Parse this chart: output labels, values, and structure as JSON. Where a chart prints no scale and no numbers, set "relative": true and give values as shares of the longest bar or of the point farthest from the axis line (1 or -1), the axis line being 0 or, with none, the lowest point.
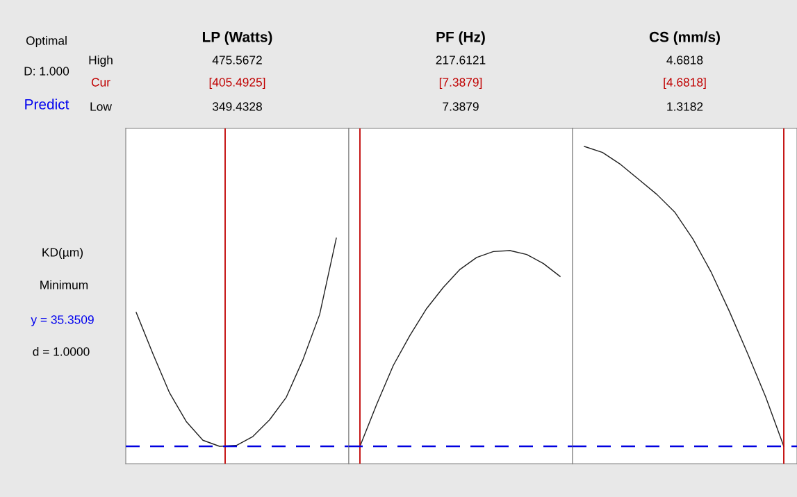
{
  "chart_data": [
    {
      "type": "line",
      "title": "LP (Watts)",
      "annotations": [
        "Optimal",
        "D: 1.000",
        "Predict",
        "High",
        "Cur",
        "Low",
        "KD(µm)",
        "Minimum",
        "y = 35.3509",
        "d = 1.0000",
        "475.5672",
        "[405.4925]",
        "349.4328"
      ],
      "relative": true,
      "categories": [
        null,
        null,
        null,
        null,
        null,
        null,
        null,
        null,
        null,
        null,
        null,
        null,
        null
      ],
      "series": [
        {
          "color": "#202020",
          "values": [
            0.644,
            0.447,
            0.259,
            0.122,
            0.032,
            0.003,
            0.007,
            0.05,
            0.13,
            0.238,
            0.418,
            0.634,
            1
          ]
        }
      ]
    },
    {
      "type": "line",
      "title": "PF (Hz)",
      "annotations": [
        "217.6121",
        "[7.3879]",
        "7.3879"
      ],
      "relative": true,
      "categories": [
        null,
        null,
        null,
        null,
        null,
        null,
        null,
        null,
        null,
        null,
        null,
        null,
        null
      ],
      "series": [
        {
          "color": "#202020",
          "values": [
            0,
            0.214,
            0.413,
            0.567,
            0.704,
            0.812,
            0.904,
            0.965,
            0.995,
            1,
            0.98,
            0.934,
            0.868
          ]
        }
      ]
    },
    {
      "type": "line",
      "title": "CS (mm/s)",
      "annotations": [
        "4.6818",
        "[4.6818]",
        "1.3182"
      ],
      "relative": true,
      "categories": [
        null,
        null,
        null,
        null,
        null,
        null,
        null,
        null,
        null,
        null,
        null,
        null
      ],
      "series": [
        {
          "color": "#202020",
          "values": [
            1,
            0.98,
            0.94,
            0.89,
            0.84,
            0.78,
            0.69,
            0.58,
            0.45,
            0.31,
            0.165,
            0
          ]
        }
      ]
    }
  ]
}
